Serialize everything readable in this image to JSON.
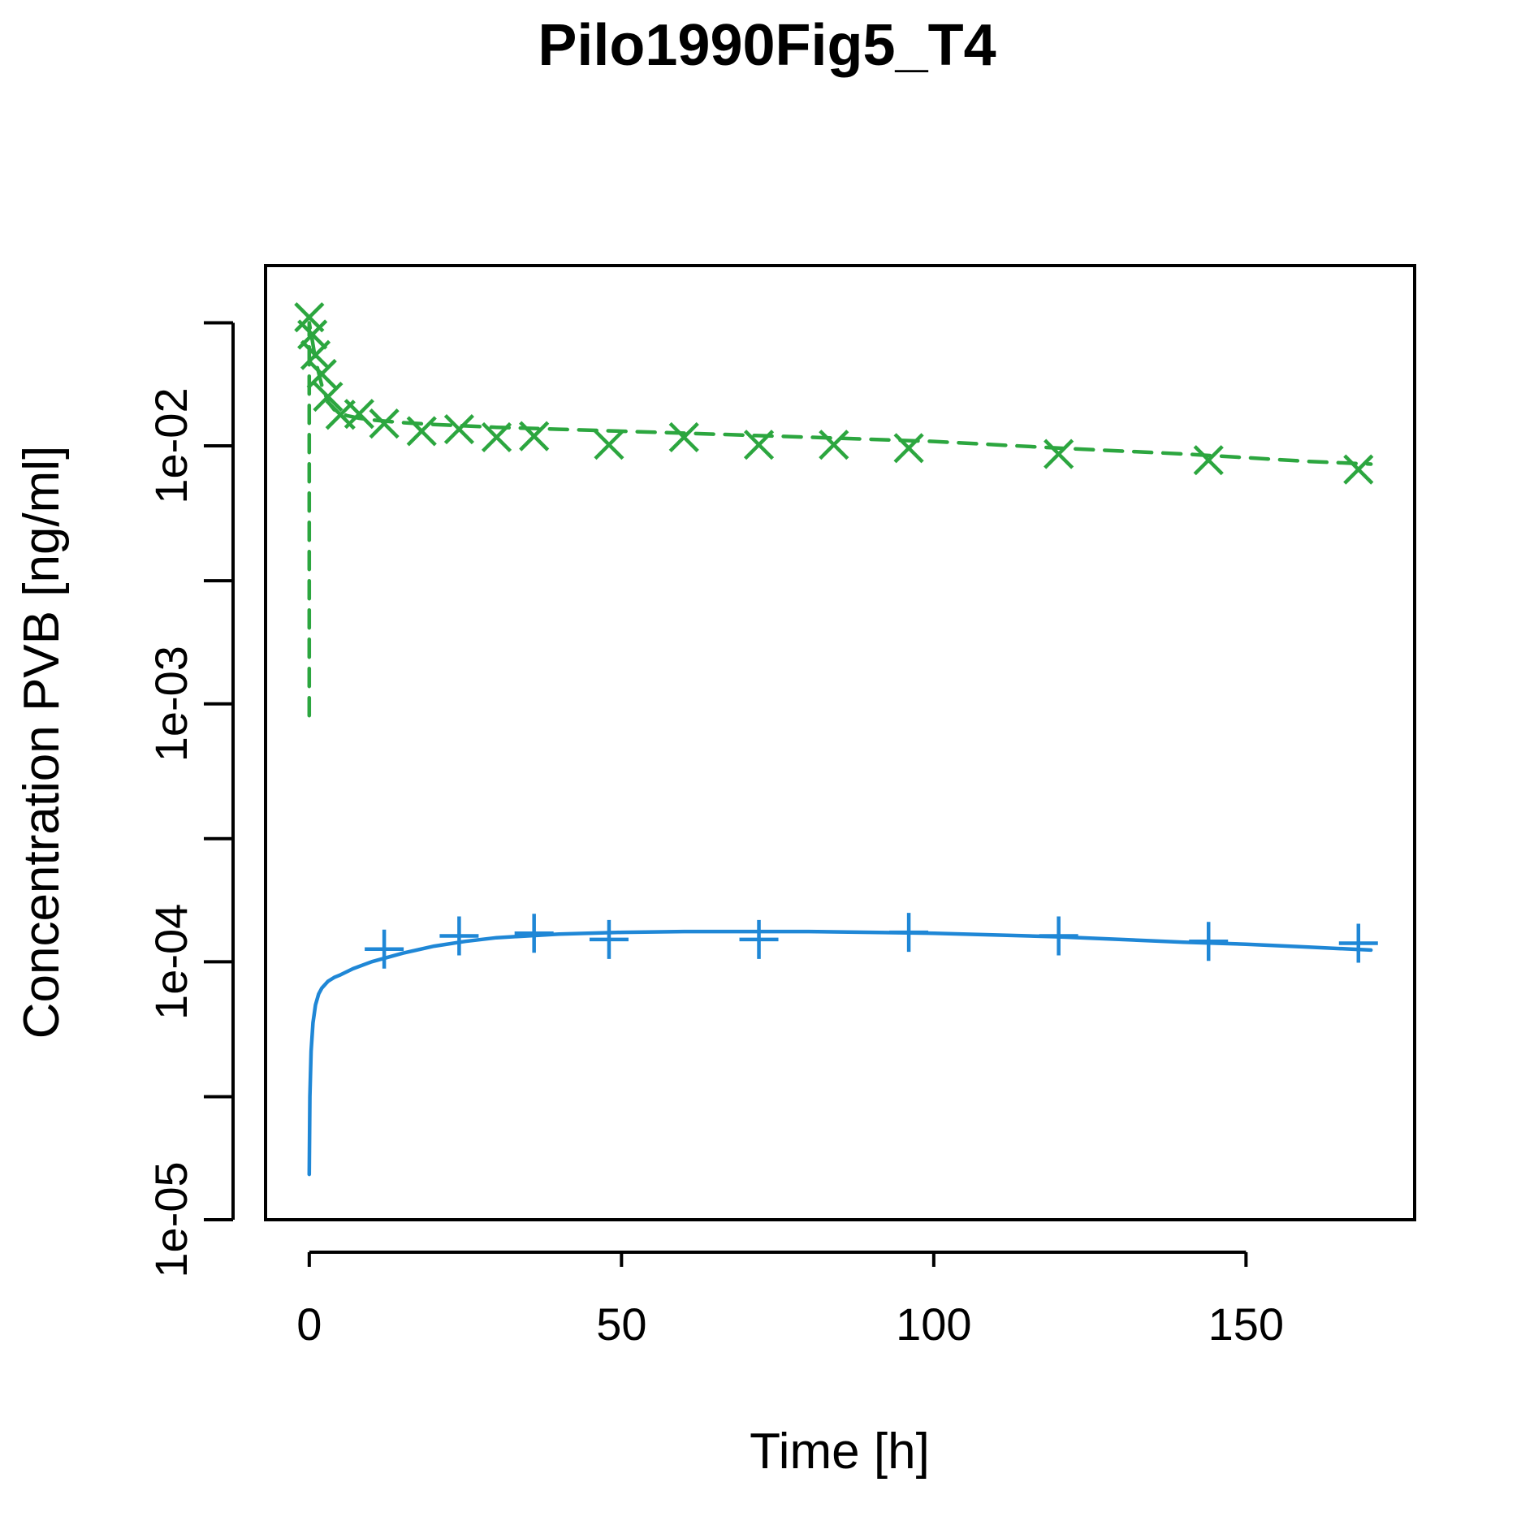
{
  "chart_data": {
    "type": "line",
    "title": "Pilo1990Fig5_T4",
    "xlabel": "Time [h]",
    "ylabel": "Concentration PVB [ng/ml]",
    "y_scale": "log",
    "xlim": [
      -7,
      177
    ],
    "ylim": [
      1e-05,
      0.05
    ],
    "grid": false,
    "legend": "none",
    "x_ticks": [
      0,
      50,
      100,
      150
    ],
    "x_tick_labels": [
      "0",
      "50",
      "100",
      "150"
    ],
    "y_ticks": [
      1e-05,
      0.0001,
      0.001,
      0.01
    ],
    "y_tick_labels": [
      "1e-05",
      "1e-04",
      "1e-03",
      "1e-02"
    ],
    "y_minor_ticks": [
      3e-05,
      0.0003,
      0.003,
      0.03
    ],
    "series": [
      {
        "color": "#2ca63f",
        "marker": "x",
        "line_style": "dashed",
        "observed": {
          "x": [
            0,
            0.5,
            1,
            2,
            3,
            5,
            8,
            12,
            18,
            24,
            30,
            36,
            48,
            60,
            72,
            84,
            96,
            120,
            144,
            168
          ],
          "y": [
            0.0315,
            0.027,
            0.0225,
            0.019,
            0.0155,
            0.0132,
            0.0133,
            0.0122,
            0.0114,
            0.0116,
            0.0108,
            0.0109,
            0.0101,
            0.0108,
            0.0101,
            0.0101,
            0.0098,
            0.0093,
            0.0088,
            0.0081
          ]
        },
        "fit": {
          "x": [
            0,
            0,
            0.5,
            1,
            2,
            3,
            4,
            6,
            8,
            10,
            15,
            20,
            30,
            40,
            50,
            60,
            80,
            100,
            120,
            140,
            160,
            170
          ],
          "y": [
            0.0009,
            0.03,
            0.0255,
            0.0215,
            0.0172,
            0.0148,
            0.0138,
            0.0131,
            0.0128,
            0.0126,
            0.0123,
            0.0121,
            0.0118,
            0.0116,
            0.0114,
            0.0112,
            0.0108,
            0.0104,
            0.0098,
            0.0093,
            0.0087,
            0.0085
          ]
        }
      },
      {
        "color": "#1f87d6",
        "marker": "+",
        "line_style": "solid",
        "observed": {
          "x": [
            12,
            24,
            36,
            48,
            72,
            96,
            120,
            144,
            168
          ],
          "y": [
            0.000112,
            0.000126,
            0.000129,
            0.000122,
            0.000122,
            0.00013,
            0.000126,
            0.00012,
            0.000118
          ]
        },
        "fit": {
          "x": [
            0,
            0.1,
            0.3,
            0.6,
            1,
            1.5,
            2,
            3,
            4,
            5,
            7,
            10,
            15,
            20,
            25,
            30,
            40,
            50,
            60,
            70,
            80,
            90,
            100,
            110,
            120,
            130,
            140,
            150,
            160,
            170
          ],
          "y": [
            1.5e-05,
            3e-05,
            4.5e-05,
            5.8e-05,
            6.8e-05,
            7.5e-05,
            7.9e-05,
            8.4e-05,
            8.7e-05,
            8.9e-05,
            9.4e-05,
            0.0001,
            0.000108,
            0.000115,
            0.00012,
            0.000124,
            0.000128,
            0.00013,
            0.000131,
            0.000131,
            0.000131,
            0.00013,
            0.000129,
            0.000127,
            0.000125,
            0.000122,
            0.000119,
            0.000117,
            0.000114,
            0.000111
          ]
        }
      }
    ]
  }
}
